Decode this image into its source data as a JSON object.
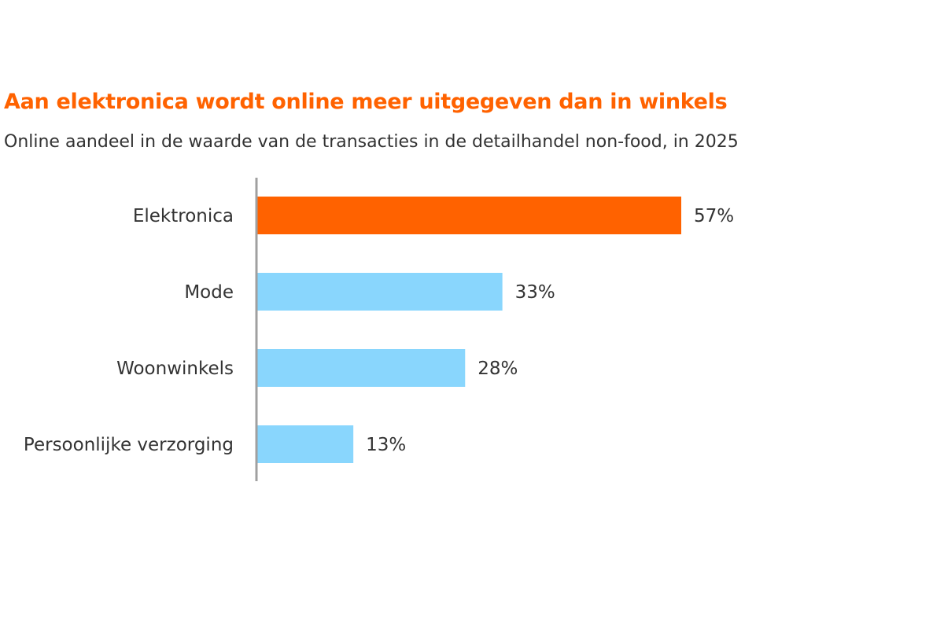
{
  "chart_data": {
    "type": "bar",
    "orientation": "horizontal",
    "title": "Aan elektronica wordt online meer uitgegeven dan in winkels",
    "subtitle": "Online aandeel in de waarde van de transacties in de detailhandel non-food, in 2025",
    "categories": [
      "Elektronica",
      "Mode",
      "Woonwinkels",
      "Persoonlijke verzorging"
    ],
    "values": [
      57,
      33,
      28,
      13
    ],
    "value_labels": [
      "57%",
      "33%",
      "28%",
      "13%"
    ],
    "unit": "%",
    "xlim": [
      0,
      60
    ],
    "grid": false,
    "colors": {
      "highlight": "#ff6200",
      "default": "#89d6fd",
      "axis": "#a0a0a0"
    },
    "highlight_index": 0
  }
}
